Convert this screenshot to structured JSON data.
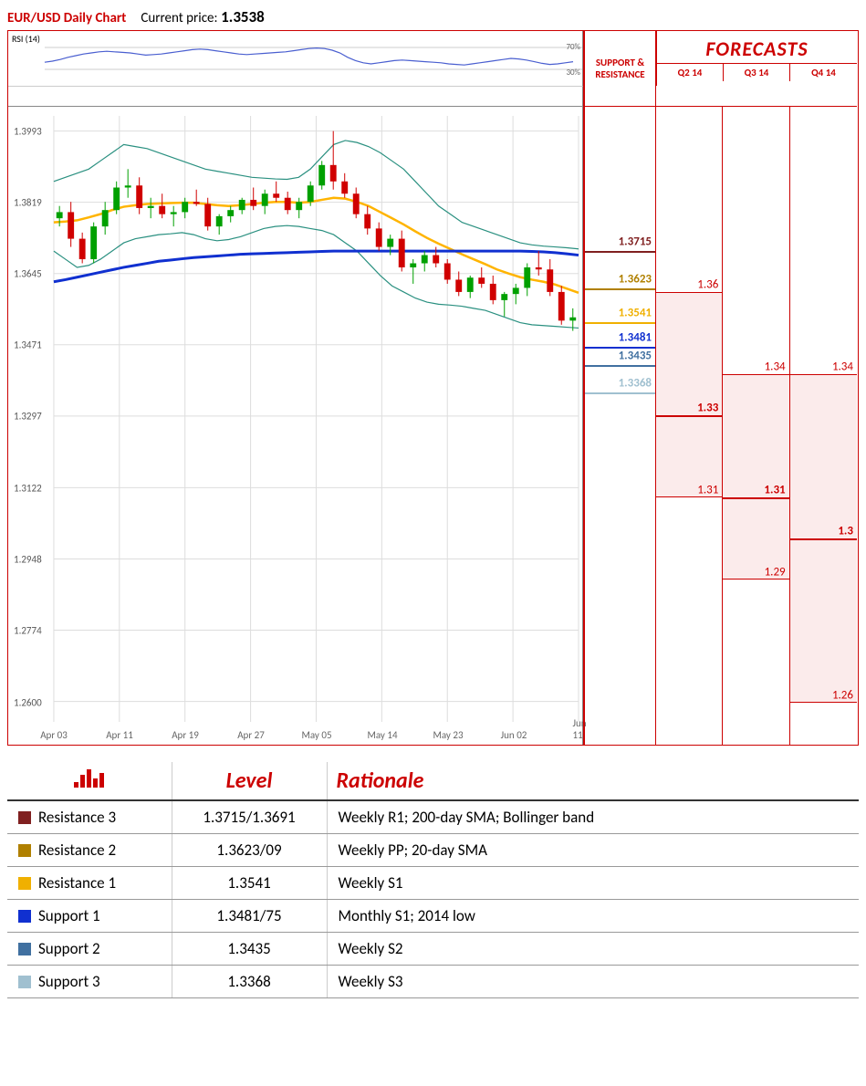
{
  "header": {
    "title": "EUR/USD Daily Chart",
    "price_label": "Current price:",
    "price_value": "1.3538"
  },
  "rsi": {
    "label": "RSI (14)",
    "color": "#4a5fd0",
    "ticks": [
      70,
      30
    ],
    "series": [
      43,
      45,
      48,
      52,
      55,
      58,
      60,
      62,
      63,
      62,
      61,
      60,
      58,
      56,
      57,
      58,
      60,
      62,
      64,
      66,
      67,
      66,
      64,
      62,
      60,
      58,
      57,
      58,
      59,
      60,
      61,
      62,
      64,
      66,
      68,
      69,
      68,
      65,
      60,
      52,
      46,
      42,
      40,
      42,
      44,
      46,
      47,
      46,
      45,
      44,
      43,
      42,
      40,
      39,
      38,
      40,
      42,
      44,
      46,
      48,
      50,
      49,
      47,
      44,
      41,
      39,
      40,
      42,
      44
    ]
  },
  "price_chart": {
    "ymin": 1.255,
    "ymax": 1.403,
    "yticks": [
      1.3993,
      1.3819,
      1.3645,
      1.3471,
      1.3297,
      1.3122,
      1.2948,
      1.2774,
      1.26
    ],
    "xticks": [
      "Apr 03",
      "Apr 11",
      "Apr 19",
      "Apr 27",
      "May 05",
      "May 14",
      "May 23",
      "Jun 02",
      "Jun 11"
    ],
    "grid_color": "#dddddd",
    "candle_up_color": "#00a000",
    "candle_down_color": "#d00000",
    "bb_color": "#2a9080",
    "sma_short_color": "#ffb400",
    "sma_long_color": "#1030d0",
    "candles": [
      {
        "o": 1.378,
        "h": 1.381,
        "l": 1.376,
        "c": 1.3795
      },
      {
        "o": 1.3795,
        "h": 1.382,
        "l": 1.371,
        "c": 1.373
      },
      {
        "o": 1.373,
        "h": 1.3745,
        "l": 1.367,
        "c": 1.368
      },
      {
        "o": 1.368,
        "h": 1.377,
        "l": 1.367,
        "c": 1.376
      },
      {
        "o": 1.376,
        "h": 1.382,
        "l": 1.374,
        "c": 1.38
      },
      {
        "o": 1.38,
        "h": 1.387,
        "l": 1.379,
        "c": 1.3855
      },
      {
        "o": 1.3855,
        "h": 1.39,
        "l": 1.383,
        "c": 1.386
      },
      {
        "o": 1.386,
        "h": 1.388,
        "l": 1.379,
        "c": 1.3805
      },
      {
        "o": 1.3805,
        "h": 1.383,
        "l": 1.378,
        "c": 1.381
      },
      {
        "o": 1.381,
        "h": 1.384,
        "l": 1.378,
        "c": 1.379
      },
      {
        "o": 1.379,
        "h": 1.381,
        "l": 1.376,
        "c": 1.3795
      },
      {
        "o": 1.3795,
        "h": 1.383,
        "l": 1.378,
        "c": 1.382
      },
      {
        "o": 1.382,
        "h": 1.385,
        "l": 1.381,
        "c": 1.3815
      },
      {
        "o": 1.3815,
        "h": 1.383,
        "l": 1.375,
        "c": 1.376
      },
      {
        "o": 1.376,
        "h": 1.379,
        "l": 1.374,
        "c": 1.3785
      },
      {
        "o": 1.3785,
        "h": 1.381,
        "l": 1.377,
        "c": 1.38
      },
      {
        "o": 1.38,
        "h": 1.383,
        "l": 1.379,
        "c": 1.3825
      },
      {
        "o": 1.3825,
        "h": 1.3855,
        "l": 1.38,
        "c": 1.381
      },
      {
        "o": 1.381,
        "h": 1.385,
        "l": 1.379,
        "c": 1.384
      },
      {
        "o": 1.384,
        "h": 1.387,
        "l": 1.382,
        "c": 1.383
      },
      {
        "o": 1.383,
        "h": 1.3845,
        "l": 1.379,
        "c": 1.38
      },
      {
        "o": 1.38,
        "h": 1.383,
        "l": 1.378,
        "c": 1.382
      },
      {
        "o": 1.382,
        "h": 1.387,
        "l": 1.381,
        "c": 1.386
      },
      {
        "o": 1.386,
        "h": 1.392,
        "l": 1.385,
        "c": 1.391
      },
      {
        "o": 1.391,
        "h": 1.3993,
        "l": 1.385,
        "c": 1.387
      },
      {
        "o": 1.387,
        "h": 1.389,
        "l": 1.383,
        "c": 1.384
      },
      {
        "o": 1.384,
        "h": 1.3855,
        "l": 1.378,
        "c": 1.379
      },
      {
        "o": 1.379,
        "h": 1.381,
        "l": 1.374,
        "c": 1.3755
      },
      {
        "o": 1.3755,
        "h": 1.377,
        "l": 1.37,
        "c": 1.371
      },
      {
        "o": 1.371,
        "h": 1.374,
        "l": 1.369,
        "c": 1.373
      },
      {
        "o": 1.373,
        "h": 1.375,
        "l": 1.365,
        "c": 1.366
      },
      {
        "o": 1.366,
        "h": 1.368,
        "l": 1.362,
        "c": 1.367
      },
      {
        "o": 1.367,
        "h": 1.37,
        "l": 1.365,
        "c": 1.369
      },
      {
        "o": 1.369,
        "h": 1.371,
        "l": 1.366,
        "c": 1.367
      },
      {
        "o": 1.367,
        "h": 1.368,
        "l": 1.362,
        "c": 1.363
      },
      {
        "o": 1.363,
        "h": 1.365,
        "l": 1.359,
        "c": 1.36
      },
      {
        "o": 1.36,
        "h": 1.364,
        "l": 1.3585,
        "c": 1.3635
      },
      {
        "o": 1.3635,
        "h": 1.366,
        "l": 1.361,
        "c": 1.362
      },
      {
        "o": 1.362,
        "h": 1.364,
        "l": 1.357,
        "c": 1.358
      },
      {
        "o": 1.358,
        "h": 1.36,
        "l": 1.354,
        "c": 1.3595
      },
      {
        "o": 1.3595,
        "h": 1.362,
        "l": 1.357,
        "c": 1.361
      },
      {
        "o": 1.361,
        "h": 1.367,
        "l": 1.359,
        "c": 1.366
      },
      {
        "o": 1.366,
        "h": 1.37,
        "l": 1.364,
        "c": 1.3655
      },
      {
        "o": 1.3655,
        "h": 1.368,
        "l": 1.359,
        "c": 1.36
      },
      {
        "o": 1.36,
        "h": 1.3615,
        "l": 1.352,
        "c": 1.353
      },
      {
        "o": 1.353,
        "h": 1.356,
        "l": 1.3505,
        "c": 1.3538
      }
    ],
    "bb_upper": [
      1.387,
      1.388,
      1.389,
      1.39,
      1.392,
      1.394,
      1.396,
      1.3955,
      1.395,
      1.394,
      1.393,
      1.392,
      1.391,
      1.39,
      1.3895,
      1.389,
      1.3885,
      1.388,
      1.3878,
      1.3876,
      1.3875,
      1.388,
      1.39,
      1.393,
      1.396,
      1.397,
      1.3965,
      1.3955,
      1.394,
      1.392,
      1.39,
      1.387,
      1.384,
      1.381,
      1.379,
      1.377,
      1.376,
      1.375,
      1.374,
      1.373,
      1.372,
      1.3715,
      1.3712,
      1.371,
      1.3708,
      1.3705
    ],
    "bb_lower": [
      1.37,
      1.368,
      1.366,
      1.3665,
      1.368,
      1.37,
      1.372,
      1.373,
      1.3735,
      1.374,
      1.3742,
      1.3745,
      1.374,
      1.373,
      1.3725,
      1.3728,
      1.3735,
      1.3745,
      1.3755,
      1.376,
      1.3762,
      1.376,
      1.3755,
      1.375,
      1.374,
      1.372,
      1.37,
      1.367,
      1.364,
      1.3615,
      1.36,
      1.3585,
      1.3575,
      1.357,
      1.3568,
      1.3565,
      1.356,
      1.3555,
      1.3545,
      1.3535,
      1.3525,
      1.352,
      1.3518,
      1.3516,
      1.3514,
      1.3512
    ],
    "sma_short": [
      1.377,
      1.3772,
      1.3775,
      1.3782,
      1.379,
      1.38,
      1.3808,
      1.3812,
      1.3815,
      1.3816,
      1.3817,
      1.3818,
      1.3818,
      1.3815,
      1.3812,
      1.381,
      1.3812,
      1.3815,
      1.3818,
      1.382,
      1.382,
      1.3818,
      1.382,
      1.3825,
      1.383,
      1.3828,
      1.382,
      1.381,
      1.3795,
      1.378,
      1.3765,
      1.3748,
      1.3732,
      1.3718,
      1.3705,
      1.3692,
      1.368,
      1.3668,
      1.3655,
      1.3645,
      1.3636,
      1.363,
      1.3625,
      1.3618,
      1.3608,
      1.3598
    ],
    "sma_long": [
      1.3625,
      1.363,
      1.3636,
      1.3642,
      1.3648,
      1.3654,
      1.366,
      1.3665,
      1.367,
      1.3675,
      1.3678,
      1.3681,
      1.3684,
      1.3686,
      1.3688,
      1.369,
      1.3692,
      1.3693,
      1.3694,
      1.3695,
      1.3696,
      1.3697,
      1.3698,
      1.3699,
      1.37,
      1.37,
      1.37,
      1.37,
      1.37,
      1.37,
      1.37,
      1.37,
      1.37,
      1.37,
      1.37,
      1.37,
      1.37,
      1.37,
      1.37,
      1.37,
      1.37,
      1.3699,
      1.3698,
      1.3696,
      1.3693,
      1.369
    ]
  },
  "sr_header": "SUPPORT & RESISTANCE",
  "sr_levels": [
    {
      "value": 1.3715,
      "label": "1.3715",
      "color": "#802020"
    },
    {
      "value": 1.3623,
      "label": "1.3623",
      "color": "#b08000"
    },
    {
      "value": 1.3541,
      "label": "1.3541",
      "color": "#f0b000"
    },
    {
      "value": 1.3481,
      "label": "1.3481",
      "color": "#1030d0"
    },
    {
      "value": 1.3435,
      "label": "1.3435",
      "color": "#4070a0"
    },
    {
      "value": 1.3368,
      "label": "1.3368",
      "color": "#a0c0d0"
    }
  ],
  "forecasts": {
    "title": "FORECASTS",
    "quarters": [
      "Q2 14",
      "Q3 14",
      "Q4 14"
    ],
    "columns": [
      {
        "high": 1.36,
        "mid": 1.33,
        "low": 1.31,
        "high_label": "1.36",
        "mid_label": "1.33",
        "low_label": "1.31"
      },
      {
        "high": 1.34,
        "mid": 1.31,
        "low": 1.29,
        "high_label": "1.34",
        "mid_label": "1.31",
        "low_label": "1.29"
      },
      {
        "high": 1.34,
        "mid": 1.3,
        "low": 1.26,
        "high_label": "1.34",
        "mid_label": "1.3",
        "low_label": "1.26"
      }
    ]
  },
  "table": {
    "columns": [
      "",
      "Level",
      "Rationale"
    ],
    "rows": [
      {
        "swatch": "#802020",
        "name": "Resistance 3",
        "level": "1.3715/1.3691",
        "rationale": "Weekly R1; 200-day SMA; Bollinger band"
      },
      {
        "swatch": "#b08000",
        "name": "Resistance 2",
        "level": "1.3623/09",
        "rationale": "Weekly PP; 20-day SMA"
      },
      {
        "swatch": "#f0b000",
        "name": "Resistance 1",
        "level": "1.3541",
        "rationale": "Weekly S1"
      },
      {
        "swatch": "#1030d0",
        "name": "Support 1",
        "level": "1.3481/75",
        "rationale": "Monthly S1; 2014 low"
      },
      {
        "swatch": "#4070a0",
        "name": "Support 2",
        "level": "1.3435",
        "rationale": "Weekly S2"
      },
      {
        "swatch": "#a0c0d0",
        "name": "Support 3",
        "level": "1.3368",
        "rationale": "Weekly S3"
      }
    ]
  }
}
